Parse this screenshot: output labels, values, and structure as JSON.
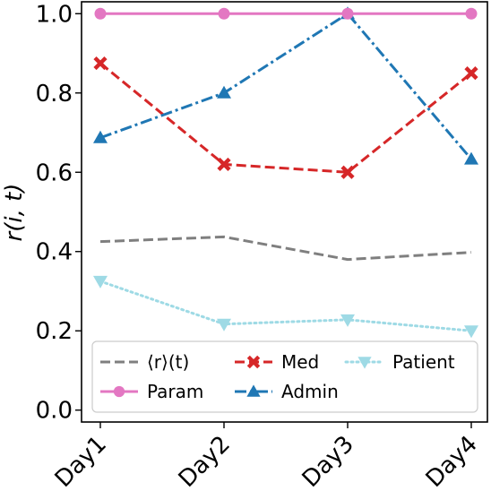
{
  "chart_data": {
    "type": "line",
    "categories": [
      "Day1",
      "Day2",
      "Day3",
      "Day4"
    ],
    "ylabel": "r(i, t)",
    "ylim": [
      -0.03,
      1.03
    ],
    "yticks": [
      0.0,
      0.2,
      0.4,
      0.6,
      0.8,
      1.0
    ],
    "ytick_labels": [
      "0.0",
      "0.2",
      "0.4",
      "0.6",
      "0.8",
      "1.0"
    ],
    "grid": false,
    "legend_position": "bottom",
    "series": [
      {
        "key": "mean",
        "name": "⟨r⟩(t)",
        "values": [
          0.425,
          0.437,
          0.38,
          0.398
        ],
        "color": "#7f7f7f",
        "dash": "dashed",
        "marker": "none"
      },
      {
        "key": "param",
        "name": "Param",
        "values": [
          1.0,
          1.0,
          1.0,
          1.0
        ],
        "color": "#e377c2",
        "dash": "solid",
        "marker": "circle"
      },
      {
        "key": "med",
        "name": "Med",
        "values": [
          0.875,
          0.62,
          0.6,
          0.85
        ],
        "color": "#d62728",
        "dash": "dashed",
        "marker": "x"
      },
      {
        "key": "admin",
        "name": "Admin",
        "values": [
          0.687,
          0.8,
          1.0,
          0.633
        ],
        "color": "#1f77b4",
        "dash": "dashdot",
        "marker": "triangle-up"
      },
      {
        "key": "patient",
        "name": "Patient",
        "values": [
          0.325,
          0.217,
          0.228,
          0.2
        ],
        "color": "#9edae5",
        "dash": "dotted",
        "marker": "triangle-down"
      }
    ]
  }
}
